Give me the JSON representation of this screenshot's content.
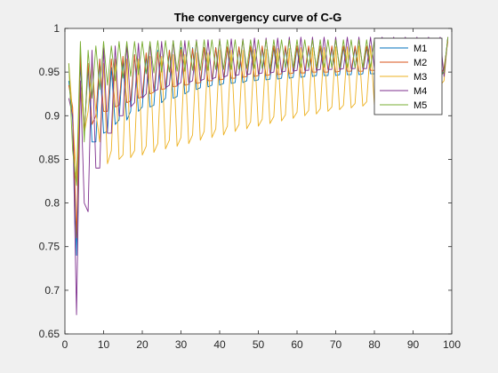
{
  "chart_data": {
    "type": "line",
    "title": "The convergency curve of C-G",
    "xlabel": "",
    "ylabel": "",
    "xlim": [
      0,
      100
    ],
    "ylim": [
      0.65,
      1
    ],
    "xticks": [
      0,
      10,
      20,
      30,
      40,
      50,
      60,
      70,
      80,
      90,
      100
    ],
    "yticks": [
      0.65,
      0.7,
      0.75,
      0.8,
      0.85,
      0.9,
      0.95,
      1
    ],
    "ytick_labels": [
      "0.65",
      "0.7",
      "0.75",
      "0.8",
      "0.85",
      "0.9",
      "0.95",
      "1"
    ],
    "grid": false,
    "legend_position": "top-right",
    "x": [
      1,
      2,
      3,
      4,
      5,
      6,
      7,
      8,
      9,
      10,
      11,
      12,
      13,
      14,
      15,
      16,
      17,
      18,
      19,
      20,
      21,
      22,
      23,
      24,
      25,
      26,
      27,
      28,
      29,
      30,
      31,
      32,
      33,
      34,
      35,
      36,
      37,
      38,
      39,
      40,
      41,
      42,
      43,
      44,
      45,
      46,
      47,
      48,
      49,
      50,
      51,
      52,
      53,
      54,
      55,
      56,
      57,
      58,
      59,
      60,
      61,
      62,
      63,
      64,
      65,
      66,
      67,
      68,
      69,
      70,
      71,
      72,
      73,
      74,
      75,
      76,
      77,
      78,
      79,
      80,
      81,
      82,
      83,
      84,
      85,
      86,
      87,
      88,
      89,
      90,
      91,
      92,
      93,
      94,
      95,
      96,
      97,
      98,
      99
    ],
    "series": [
      {
        "name": "M1",
        "color": "#0072bd",
        "values": [
          0.94,
          0.895,
          0.74,
          0.96,
          0.88,
          0.955,
          0.87,
          0.87,
          0.965,
          0.88,
          0.882,
          0.955,
          0.89,
          0.895,
          0.965,
          0.895,
          0.905,
          0.97,
          0.905,
          0.91,
          0.97,
          0.91,
          0.912,
          0.975,
          0.915,
          0.92,
          0.975,
          0.92,
          0.922,
          0.978,
          0.925,
          0.928,
          0.978,
          0.93,
          0.932,
          0.978,
          0.933,
          0.935,
          0.978,
          0.935,
          0.937,
          0.978,
          0.937,
          0.938,
          0.978,
          0.938,
          0.94,
          0.978,
          0.94,
          0.941,
          0.978,
          0.941,
          0.942,
          0.978,
          0.942,
          0.943,
          0.978,
          0.943,
          0.944,
          0.978,
          0.944,
          0.945,
          0.978,
          0.945,
          0.946,
          0.978,
          0.946,
          0.946,
          0.978,
          0.946,
          0.947,
          0.978,
          0.947,
          0.947,
          0.978,
          0.947,
          0.948,
          0.978,
          0.948,
          0.948,
          0.978,
          0.948,
          0.948,
          0.978,
          0.948,
          0.948,
          0.978,
          0.948,
          0.948,
          0.978,
          0.948,
          0.948,
          0.978,
          0.948,
          0.948,
          0.978,
          0.948,
          0.95,
          0.99
        ]
      },
      {
        "name": "M2",
        "color": "#d95319",
        "values": [
          0.935,
          0.91,
          0.76,
          0.97,
          0.88,
          0.96,
          0.89,
          0.9,
          0.965,
          0.905,
          0.905,
          0.965,
          0.91,
          0.912,
          0.968,
          0.915,
          0.917,
          0.97,
          0.92,
          0.922,
          0.972,
          0.925,
          0.927,
          0.973,
          0.93,
          0.931,
          0.975,
          0.933,
          0.934,
          0.976,
          0.935,
          0.936,
          0.977,
          0.937,
          0.938,
          0.978,
          0.94,
          0.94,
          0.978,
          0.941,
          0.942,
          0.979,
          0.943,
          0.943,
          0.979,
          0.944,
          0.945,
          0.98,
          0.945,
          0.946,
          0.98,
          0.946,
          0.947,
          0.98,
          0.947,
          0.948,
          0.98,
          0.948,
          0.949,
          0.98,
          0.949,
          0.949,
          0.98,
          0.95,
          0.95,
          0.98,
          0.95,
          0.95,
          0.98,
          0.95,
          0.951,
          0.98,
          0.951,
          0.951,
          0.98,
          0.951,
          0.951,
          0.98,
          0.952,
          0.952,
          0.98,
          0.952,
          0.952,
          0.98,
          0.952,
          0.952,
          0.98,
          0.952,
          0.952,
          0.98,
          0.952,
          0.952,
          0.98,
          0.952,
          0.952,
          0.98,
          0.945,
          0.955,
          0.985
        ]
      },
      {
        "name": "M3",
        "color": "#edb120",
        "values": [
          0.96,
          0.9,
          0.825,
          0.94,
          0.88,
          0.905,
          0.96,
          0.905,
          0.87,
          0.96,
          0.845,
          0.86,
          0.965,
          0.85,
          0.855,
          0.965,
          0.852,
          0.86,
          0.965,
          0.855,
          0.865,
          0.968,
          0.858,
          0.868,
          0.968,
          0.862,
          0.872,
          0.97,
          0.865,
          0.875,
          0.97,
          0.868,
          0.878,
          0.972,
          0.872,
          0.882,
          0.972,
          0.875,
          0.885,
          0.975,
          0.878,
          0.888,
          0.975,
          0.882,
          0.89,
          0.975,
          0.885,
          0.893,
          0.976,
          0.888,
          0.896,
          0.976,
          0.891,
          0.899,
          0.977,
          0.894,
          0.901,
          0.977,
          0.897,
          0.904,
          0.978,
          0.9,
          0.906,
          0.978,
          0.902,
          0.908,
          0.978,
          0.905,
          0.91,
          0.979,
          0.907,
          0.912,
          0.979,
          0.909,
          0.914,
          0.98,
          0.911,
          0.916,
          0.98,
          0.913,
          0.918,
          0.98,
          0.915,
          0.92,
          0.98,
          0.917,
          0.922,
          0.981,
          0.919,
          0.923,
          0.981,
          0.921,
          0.925,
          0.981,
          0.922,
          0.927,
          0.935,
          0.94,
          0.99
        ]
      },
      {
        "name": "M4",
        "color": "#7e2f8e",
        "values": [
          0.92,
          0.9,
          0.672,
          0.94,
          0.8,
          0.79,
          0.975,
          0.84,
          0.84,
          0.978,
          0.88,
          0.88,
          0.98,
          0.9,
          0.9,
          0.982,
          0.91,
          0.915,
          0.983,
          0.92,
          0.925,
          0.984,
          0.928,
          0.93,
          0.985,
          0.932,
          0.935,
          0.986,
          0.935,
          0.938,
          0.986,
          0.938,
          0.94,
          0.987,
          0.94,
          0.942,
          0.987,
          0.942,
          0.944,
          0.988,
          0.944,
          0.946,
          0.988,
          0.946,
          0.947,
          0.988,
          0.947,
          0.948,
          0.989,
          0.948,
          0.949,
          0.989,
          0.949,
          0.95,
          0.989,
          0.95,
          0.951,
          0.99,
          0.951,
          0.952,
          0.99,
          0.952,
          0.952,
          0.99,
          0.952,
          0.953,
          0.99,
          0.953,
          0.953,
          0.99,
          0.953,
          0.954,
          0.99,
          0.954,
          0.954,
          0.99,
          0.954,
          0.954,
          0.99,
          0.954,
          0.955,
          0.99,
          0.955,
          0.955,
          0.99,
          0.955,
          0.955,
          0.99,
          0.955,
          0.955,
          0.99,
          0.955,
          0.955,
          0.99,
          0.955,
          0.955,
          0.99,
          0.945,
          0.99
        ]
      },
      {
        "name": "M5",
        "color": "#77ac30",
        "values": [
          0.96,
          0.86,
          0.82,
          0.985,
          0.87,
          0.975,
          0.92,
          0.98,
          0.93,
          0.985,
          0.935,
          0.98,
          0.94,
          0.985,
          0.943,
          0.985,
          0.945,
          0.985,
          0.947,
          0.985,
          0.948,
          0.985,
          0.949,
          0.986,
          0.95,
          0.986,
          0.95,
          0.986,
          0.951,
          0.986,
          0.951,
          0.986,
          0.952,
          0.986,
          0.952,
          0.987,
          0.952,
          0.987,
          0.953,
          0.987,
          0.953,
          0.987,
          0.953,
          0.987,
          0.953,
          0.987,
          0.954,
          0.987,
          0.954,
          0.987,
          0.954,
          0.987,
          0.954,
          0.987,
          0.954,
          0.987,
          0.955,
          0.987,
          0.955,
          0.987,
          0.955,
          0.987,
          0.955,
          0.987,
          0.955,
          0.987,
          0.955,
          0.987,
          0.955,
          0.987,
          0.955,
          0.987,
          0.955,
          0.987,
          0.955,
          0.987,
          0.955,
          0.987,
          0.955,
          0.987,
          0.955,
          0.987,
          0.955,
          0.987,
          0.955,
          0.987,
          0.955,
          0.987,
          0.955,
          0.987,
          0.955,
          0.987,
          0.955,
          0.987,
          0.955,
          0.985,
          0.945,
          0.95,
          0.99
        ]
      }
    ]
  }
}
